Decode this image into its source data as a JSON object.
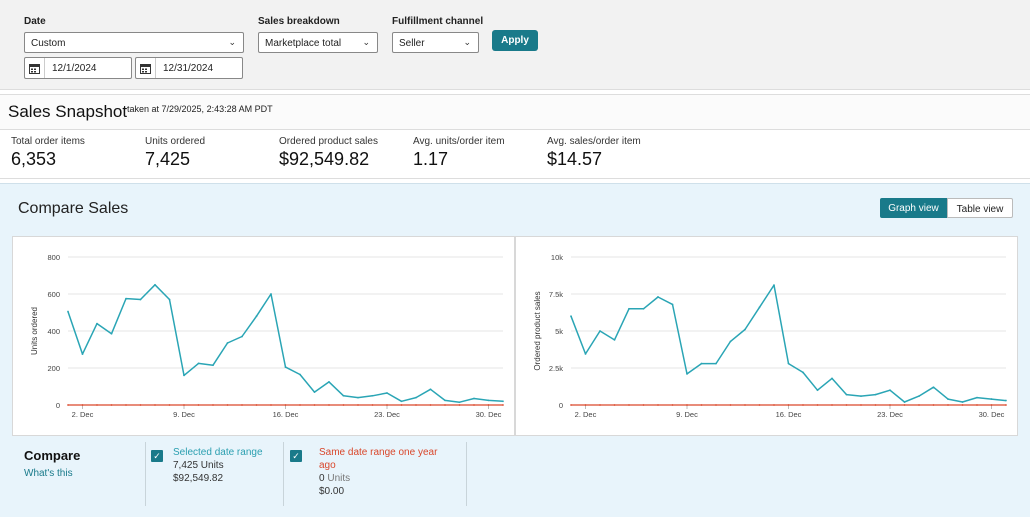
{
  "filters": {
    "date_label": "Date",
    "date_value": "Custom",
    "start_date": "12/1/2024",
    "end_date": "12/31/2024",
    "breakdown_label": "Sales breakdown",
    "breakdown_value": "Marketplace total",
    "channel_label": "Fulfillment channel",
    "channel_value": "Seller",
    "apply_label": "Apply"
  },
  "snapshot": {
    "title": "Sales Snapshot",
    "taken": "taken at 7/29/2025, 2:43:28 AM PDT",
    "metrics": [
      {
        "label": "Total order items",
        "value": "6,353"
      },
      {
        "label": "Units ordered",
        "value": "7,425"
      },
      {
        "label": "Ordered product sales",
        "value": "$92,549.82"
      },
      {
        "label": "Avg. units/order item",
        "value": "1.17"
      },
      {
        "label": "Avg. sales/order item",
        "value": "$14.57"
      }
    ]
  },
  "compare": {
    "title": "Compare Sales",
    "graph_view": "Graph view",
    "table_view": "Table view",
    "legend_title": "Compare",
    "whats_this": "What's this",
    "selected": {
      "label": "Selected date range",
      "units": "7,425 Units",
      "sales": "$92,549.82"
    },
    "previous": {
      "label_line1": "Same date range one year",
      "label_line2": "ago",
      "units_num": "0",
      "units_word": "Units",
      "sales": "$0.00"
    }
  },
  "colors": {
    "accent": "#197a8a",
    "selected_series": "#2aa5b5",
    "previous_series": "#d9472b"
  },
  "chart_data": [
    {
      "type": "line",
      "ylabel": "Units ordered",
      "ylim": [
        0,
        800
      ],
      "yticks": [
        0,
        200,
        400,
        600,
        800
      ],
      "ytick_labels": [
        "0",
        "200",
        "400",
        "600",
        "800"
      ],
      "x": [
        "2024-12-01",
        "2024-12-02",
        "2024-12-03",
        "2024-12-04",
        "2024-12-05",
        "2024-12-06",
        "2024-12-07",
        "2024-12-08",
        "2024-12-09",
        "2024-12-10",
        "2024-12-11",
        "2024-12-12",
        "2024-12-13",
        "2024-12-14",
        "2024-12-15",
        "2024-12-16",
        "2024-12-17",
        "2024-12-18",
        "2024-12-19",
        "2024-12-20",
        "2024-12-21",
        "2024-12-22",
        "2024-12-23",
        "2024-12-24",
        "2024-12-25",
        "2024-12-26",
        "2024-12-27",
        "2024-12-28",
        "2024-12-29",
        "2024-12-30",
        "2024-12-31"
      ],
      "xtick_labels": [
        "2. Dec",
        "9. Dec",
        "16. Dec",
        "23. Dec",
        "30. Dec"
      ],
      "xtick_dates": [
        "2024-12-02",
        "2024-12-09",
        "2024-12-16",
        "2024-12-23",
        "2024-12-30"
      ],
      "series": [
        {
          "values": [
            505,
            275,
            440,
            385,
            575,
            570,
            650,
            570,
            160,
            225,
            215,
            335,
            370,
            480,
            600,
            205,
            165,
            70,
            125,
            50,
            40,
            50,
            65,
            20,
            40,
            85,
            25,
            15,
            35,
            25,
            20
          ]
        },
        {
          "values": [
            0,
            0,
            0,
            0,
            0,
            0,
            0,
            0,
            0,
            0,
            0,
            0,
            0,
            0,
            0,
            0,
            0,
            0,
            0,
            0,
            0,
            0,
            0,
            0,
            0,
            0,
            0,
            0,
            0,
            0,
            0
          ]
        }
      ]
    },
    {
      "type": "line",
      "ylabel": "Ordered product sales",
      "ylim": [
        0,
        10000
      ],
      "yticks": [
        0,
        2500,
        5000,
        7500,
        10000
      ],
      "ytick_labels": [
        "0",
        "2.5k",
        "5k",
        "7.5k",
        "10k"
      ],
      "x": [
        "2024-12-01",
        "2024-12-02",
        "2024-12-03",
        "2024-12-04",
        "2024-12-05",
        "2024-12-06",
        "2024-12-07",
        "2024-12-08",
        "2024-12-09",
        "2024-12-10",
        "2024-12-11",
        "2024-12-12",
        "2024-12-13",
        "2024-12-14",
        "2024-12-15",
        "2024-12-16",
        "2024-12-17",
        "2024-12-18",
        "2024-12-19",
        "2024-12-20",
        "2024-12-21",
        "2024-12-22",
        "2024-12-23",
        "2024-12-24",
        "2024-12-25",
        "2024-12-26",
        "2024-12-27",
        "2024-12-28",
        "2024-12-29",
        "2024-12-30",
        "2024-12-31"
      ],
      "xtick_labels": [
        "2. Dec",
        "9. Dec",
        "16. Dec",
        "23. Dec",
        "30. Dec"
      ],
      "xtick_dates": [
        "2024-12-02",
        "2024-12-09",
        "2024-12-16",
        "2024-12-23",
        "2024-12-30"
      ],
      "series": [
        {
          "values": [
            6000,
            3450,
            5000,
            4400,
            6500,
            6500,
            7300,
            6800,
            2100,
            2800,
            2800,
            4300,
            5100,
            6600,
            8100,
            2800,
            2200,
            1000,
            1800,
            700,
            600,
            700,
            1000,
            200,
            600,
            1200,
            400,
            200,
            500,
            400,
            300
          ]
        },
        {
          "values": [
            0,
            0,
            0,
            0,
            0,
            0,
            0,
            0,
            0,
            0,
            0,
            0,
            0,
            0,
            0,
            0,
            0,
            0,
            0,
            0,
            0,
            0,
            0,
            0,
            0,
            0,
            0,
            0,
            0,
            0,
            0
          ]
        }
      ]
    }
  ]
}
